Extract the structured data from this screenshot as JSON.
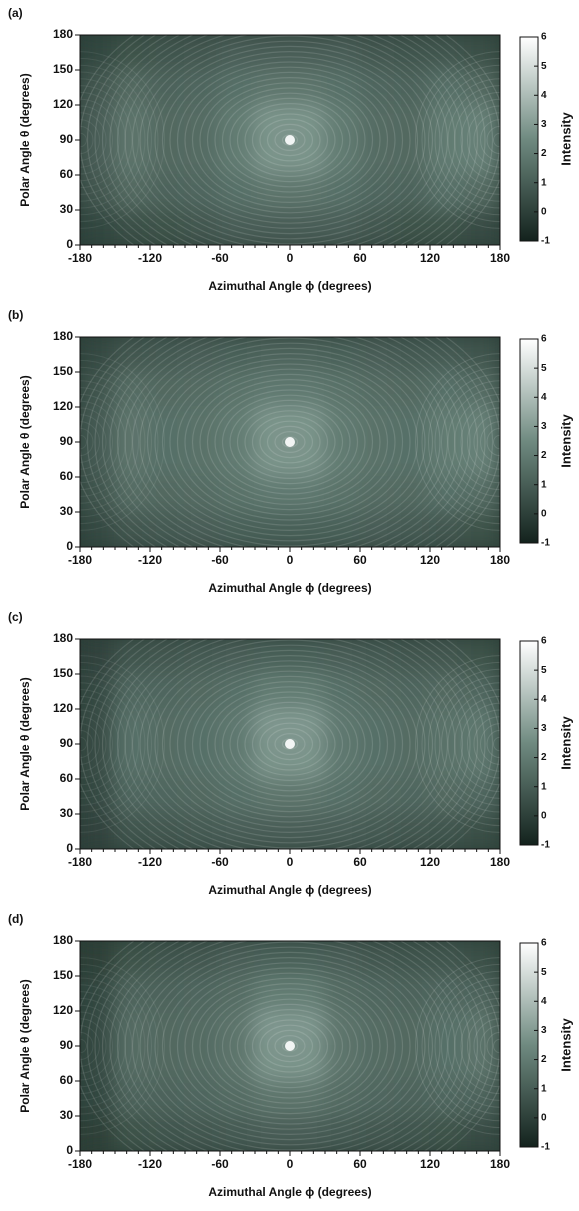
{
  "chart_data": [
    {
      "type": "heatmap",
      "panel_label": "(a)",
      "xlabel": "Azimuthal Angle ϕ  (degrees)",
      "ylabel": "Polar Angle θ  (degrees)",
      "colorbar_label": "Intensity",
      "xlim": [
        -180,
        180
      ],
      "ylim": [
        0,
        180
      ],
      "xticks": [
        -180,
        -120,
        -60,
        0,
        60,
        120,
        180
      ],
      "yticks": [
        0,
        30,
        60,
        90,
        120,
        150,
        180
      ],
      "clim": [
        -1,
        6
      ],
      "cticks": [
        -1,
        0,
        1,
        2,
        3,
        4,
        5,
        6
      ],
      "x": [
        -165,
        -135,
        -105,
        -75,
        -45,
        -15,
        15,
        45,
        75,
        105,
        135,
        165
      ],
      "y": [
        165,
        135,
        105,
        75,
        45,
        15
      ],
      "z": [
        [
          0.2,
          0.6,
          0.7,
          0.8,
          1.0,
          1.0,
          1.0,
          1.0,
          0.8,
          0.7,
          0.7,
          0.5
        ],
        [
          0.8,
          1.4,
          1.2,
          1.3,
          1.6,
          1.8,
          1.8,
          1.6,
          1.3,
          1.2,
          1.6,
          1.4
        ],
        [
          1.0,
          1.8,
          1.4,
          1.5,
          2.0,
          2.8,
          2.8,
          2.0,
          1.5,
          1.4,
          2.0,
          2.2
        ],
        [
          1.0,
          1.8,
          1.4,
          1.5,
          2.0,
          2.8,
          2.8,
          2.0,
          1.5,
          1.4,
          2.0,
          2.2
        ],
        [
          0.8,
          1.4,
          1.2,
          1.3,
          1.6,
          1.8,
          1.8,
          1.6,
          1.3,
          1.2,
          1.6,
          1.4
        ],
        [
          0.2,
          0.5,
          0.6,
          0.8,
          1.0,
          1.0,
          1.0,
          1.0,
          0.8,
          0.6,
          0.6,
          0.4
        ]
      ]
    },
    {
      "type": "heatmap",
      "panel_label": "(b)",
      "xlabel": "Azimuthal Angle ϕ  (degrees)",
      "ylabel": "Polar Angle θ  (degrees)",
      "colorbar_label": "Intensity",
      "xlim": [
        -180,
        180
      ],
      "ylim": [
        0,
        180
      ],
      "xticks": [
        -180,
        -120,
        -60,
        0,
        60,
        120,
        180
      ],
      "yticks": [
        0,
        30,
        60,
        90,
        120,
        150,
        180
      ],
      "clim": [
        -1,
        6
      ],
      "cticks": [
        -1,
        0,
        1,
        2,
        3,
        4,
        5,
        6
      ],
      "x": [
        -165,
        -135,
        -105,
        -75,
        -45,
        -15,
        15,
        45,
        75,
        105,
        135,
        165
      ],
      "y": [
        165,
        135,
        105,
        75,
        45,
        15
      ],
      "z": [
        [
          0.3,
          0.8,
          0.9,
          1.0,
          1.1,
          1.2,
          1.2,
          1.1,
          1.0,
          0.9,
          0.9,
          0.7
        ],
        [
          0.7,
          1.5,
          1.4,
          1.5,
          1.7,
          1.9,
          1.9,
          1.7,
          1.5,
          1.4,
          1.6,
          1.5
        ],
        [
          0.9,
          1.8,
          1.6,
          1.7,
          2.0,
          2.8,
          2.8,
          2.0,
          1.7,
          1.6,
          2.0,
          2.2
        ],
        [
          0.9,
          1.8,
          1.6,
          1.7,
          2.0,
          2.8,
          2.8,
          2.0,
          1.7,
          1.6,
          2.0,
          2.2
        ],
        [
          0.7,
          1.5,
          1.4,
          1.5,
          1.7,
          1.9,
          1.9,
          1.7,
          1.5,
          1.4,
          1.6,
          1.5
        ],
        [
          0.3,
          0.8,
          0.9,
          1.0,
          1.1,
          1.1,
          1.1,
          1.1,
          1.0,
          0.9,
          0.8,
          0.6
        ]
      ]
    },
    {
      "type": "heatmap",
      "panel_label": "(c)",
      "xlabel": "Azimuthal Angle ϕ  (degrees)",
      "ylabel": "Polar Angle θ  (degrees)",
      "colorbar_label": "Intensity",
      "xlim": [
        -180,
        180
      ],
      "ylim": [
        0,
        180
      ],
      "xticks": [
        -180,
        -120,
        -60,
        0,
        60,
        120,
        180
      ],
      "yticks": [
        0,
        30,
        60,
        90,
        120,
        150,
        180
      ],
      "clim": [
        -1,
        6
      ],
      "cticks": [
        -1,
        0,
        1,
        2,
        3,
        4,
        5,
        6
      ],
      "x": [
        -165,
        -135,
        -105,
        -75,
        -45,
        -15,
        15,
        45,
        75,
        105,
        135,
        165
      ],
      "y": [
        165,
        135,
        105,
        75,
        45,
        15
      ],
      "z": [
        [
          0.1,
          0.7,
          0.8,
          0.9,
          1.0,
          1.1,
          1.1,
          1.0,
          0.9,
          0.8,
          0.8,
          0.6
        ],
        [
          0.3,
          1.3,
          1.3,
          1.4,
          1.6,
          2.0,
          2.0,
          1.6,
          1.4,
          1.3,
          1.4,
          1.3
        ],
        [
          0.4,
          1.6,
          1.5,
          1.6,
          1.9,
          2.9,
          2.9,
          1.9,
          1.6,
          1.5,
          1.7,
          1.9
        ],
        [
          0.4,
          1.6,
          1.5,
          1.6,
          1.9,
          2.8,
          2.8,
          1.9,
          1.6,
          1.5,
          1.7,
          1.9
        ],
        [
          0.3,
          1.3,
          1.3,
          1.4,
          1.6,
          1.8,
          1.8,
          1.6,
          1.4,
          1.3,
          1.4,
          1.3
        ],
        [
          0.1,
          0.7,
          0.8,
          0.9,
          1.0,
          1.0,
          1.0,
          1.0,
          0.9,
          0.8,
          0.7,
          0.5
        ]
      ]
    },
    {
      "type": "heatmap",
      "panel_label": "(d)",
      "xlabel": "Azimuthal Angle ϕ  (degrees)",
      "ylabel": "Polar Angle θ  (degrees)",
      "colorbar_label": "Intensity",
      "xlim": [
        -180,
        180
      ],
      "ylim": [
        0,
        180
      ],
      "xticks": [
        -180,
        -120,
        -60,
        0,
        60,
        120,
        180
      ],
      "yticks": [
        0,
        30,
        60,
        90,
        120,
        150,
        180
      ],
      "clim": [
        -1,
        6
      ],
      "cticks": [
        -1,
        0,
        1,
        2,
        3,
        4,
        5,
        6
      ],
      "x": [
        -165,
        -135,
        -105,
        -75,
        -45,
        -15,
        15,
        45,
        75,
        105,
        135,
        165
      ],
      "y": [
        165,
        135,
        105,
        75,
        45,
        15
      ],
      "z": [
        [
          0.0,
          0.6,
          0.7,
          0.8,
          1.0,
          1.1,
          1.1,
          1.0,
          0.8,
          0.7,
          0.7,
          0.5
        ],
        [
          0.2,
          1.2,
          1.2,
          1.3,
          1.5,
          2.0,
          2.0,
          1.5,
          1.3,
          1.2,
          1.3,
          1.2
        ],
        [
          0.3,
          1.5,
          1.4,
          1.5,
          1.8,
          2.9,
          2.9,
          1.8,
          1.5,
          1.4,
          1.6,
          1.8
        ],
        [
          0.3,
          1.5,
          1.4,
          1.5,
          1.8,
          2.8,
          2.8,
          1.8,
          1.5,
          1.4,
          1.6,
          1.8
        ],
        [
          0.2,
          1.2,
          1.2,
          1.3,
          1.5,
          1.8,
          1.8,
          1.5,
          1.3,
          1.2,
          1.3,
          1.2
        ],
        [
          0.0,
          0.6,
          0.7,
          0.8,
          0.9,
          1.0,
          1.0,
          0.9,
          0.8,
          0.7,
          0.6,
          0.4
        ]
      ]
    }
  ]
}
